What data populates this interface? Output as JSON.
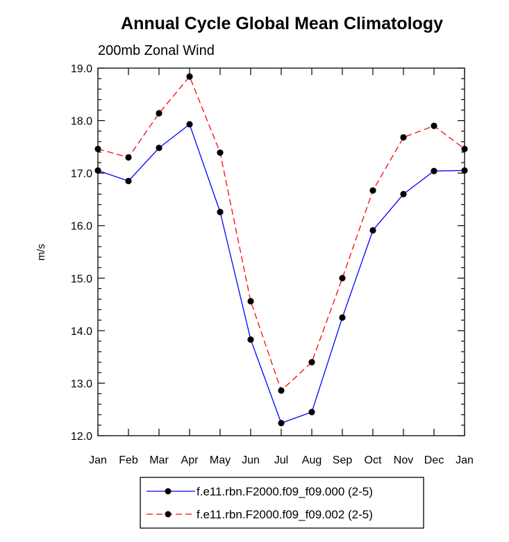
{
  "chart_data": {
    "type": "line",
    "title": "Annual Cycle Global Mean Climatology",
    "subtitle": "200mb Zonal Wind",
    "xlabel": "",
    "ylabel": "m/s",
    "categories": [
      "Jan",
      "Feb",
      "Mar",
      "Apr",
      "May",
      "Jun",
      "Jul",
      "Aug",
      "Sep",
      "Oct",
      "Nov",
      "Dec",
      "Jan"
    ],
    "ylim": [
      12.0,
      19.0
    ],
    "yticks": [
      "12.0",
      "13.0",
      "14.0",
      "15.0",
      "16.0",
      "17.0",
      "18.0",
      "19.0"
    ],
    "grid": false,
    "legend_position": "bottom",
    "series": [
      {
        "name": "f.e11.rbn.F2000.f09_f09.000 (2-5)",
        "color": "#0000ff",
        "line_style": "solid",
        "marker": "filled-circle",
        "values": [
          17.05,
          16.85,
          17.48,
          17.93,
          16.26,
          13.83,
          12.24,
          12.45,
          14.25,
          15.91,
          16.6,
          17.04,
          17.05
        ]
      },
      {
        "name": "f.e11.rbn.F2000.f09_f09.002 (2-5)",
        "color": "#ff0000",
        "line_style": "dashed",
        "marker": "filled-circle",
        "values": [
          17.46,
          17.3,
          18.14,
          18.84,
          17.39,
          14.56,
          12.86,
          13.4,
          15.0,
          16.67,
          17.68,
          17.9,
          17.46
        ]
      }
    ]
  }
}
